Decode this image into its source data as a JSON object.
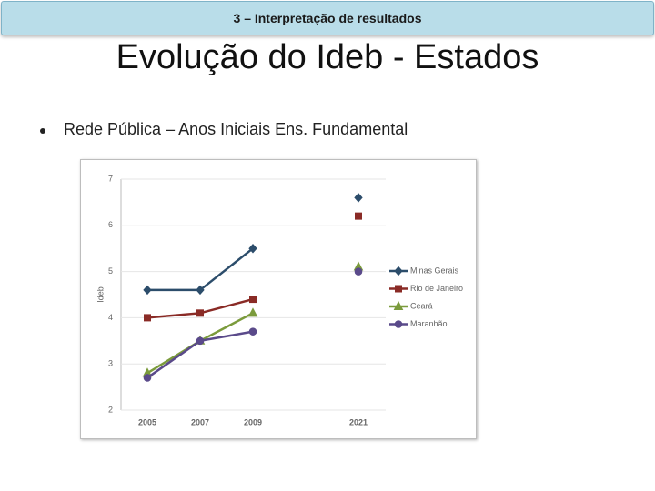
{
  "header": {
    "title": "3 – Interpretação de resultados"
  },
  "slide": {
    "title": "Evolução do Ideb - Estados",
    "bullet": "Rede Pública – Anos Iniciais Ens. Fundamental"
  },
  "chart_data": {
    "type": "line",
    "y_label": "Ideb",
    "categories": [
      "2005",
      "2007",
      "2009",
      null,
      "2021"
    ],
    "ylim": [
      2,
      7
    ],
    "yticks": [
      2,
      3,
      4,
      5,
      6,
      7
    ],
    "grid": true,
    "legend": "right",
    "series": [
      {
        "name": "Minas Gerais",
        "color": "#2c4d6b",
        "marker": "diamond",
        "values": [
          4.6,
          4.6,
          5.5,
          null,
          6.6
        ]
      },
      {
        "name": "Rio de Janeiro",
        "color": "#8a2b26",
        "marker": "square",
        "values": [
          4.0,
          4.1,
          4.4,
          null,
          6.2
        ]
      },
      {
        "name": "Ceará",
        "color": "#7b9b3c",
        "marker": "triangle",
        "values": [
          2.8,
          3.5,
          4.1,
          null,
          5.1
        ]
      },
      {
        "name": "Maranhão",
        "color": "#5a4a8a",
        "marker": "circle",
        "values": [
          2.7,
          3.5,
          3.7,
          null,
          5.0
        ]
      }
    ]
  }
}
